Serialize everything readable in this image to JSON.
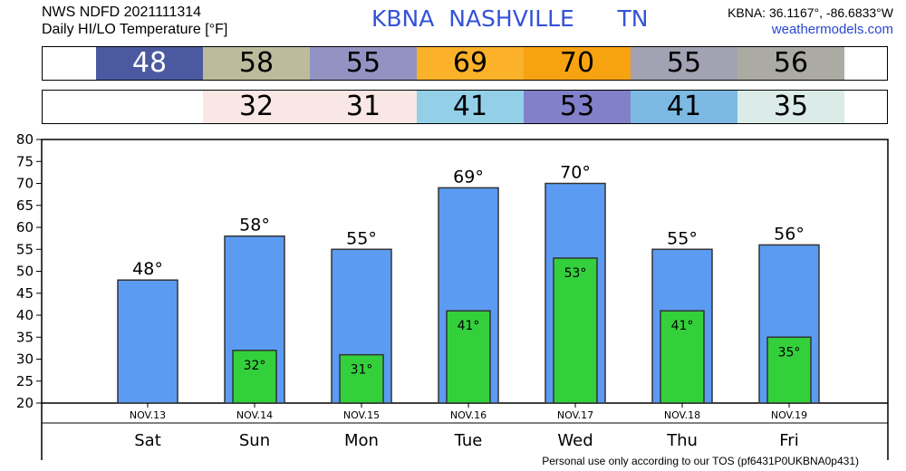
{
  "header": {
    "line1": "NWS NDFD 2021111314",
    "line2": "Daily HI/LO Temperature [°F]",
    "station_line": "KBNA  NASHVILLE      TN",
    "coords": "KBNA: 36.1167°, -86.6833°W",
    "site": "weathermodels.com"
  },
  "footer": "Personal use only according to our TOS (pf6431P0UKBNA0p431)",
  "hi_strip": [
    {
      "value": "48",
      "color": "#4b5aa0",
      "text_color": "#ffffff"
    },
    {
      "value": "58",
      "color": "#bcbc9c",
      "text_color": "#000000"
    },
    {
      "value": "55",
      "color": "#9293c3",
      "text_color": "#000000"
    },
    {
      "value": "69",
      "color": "#fbb12a",
      "text_color": "#000000"
    },
    {
      "value": "70",
      "color": "#f7a210",
      "text_color": "#000000"
    },
    {
      "value": "55",
      "color": "#a2a2b2",
      "text_color": "#000000"
    },
    {
      "value": "56",
      "color": "#ababa3",
      "text_color": "#000000"
    }
  ],
  "lo_strip": [
    {
      "value": "",
      "color": "#ffffff",
      "text_color": "#000000"
    },
    {
      "value": "32",
      "color": "#f8e7e5",
      "text_color": "#000000"
    },
    {
      "value": "31",
      "color": "#f8e7e5",
      "text_color": "#000000"
    },
    {
      "value": "41",
      "color": "#93d0e8",
      "text_color": "#000000"
    },
    {
      "value": "53",
      "color": "#8180c8",
      "text_color": "#000000"
    },
    {
      "value": "41",
      "color": "#7dbae3",
      "text_color": "#000000"
    },
    {
      "value": "35",
      "color": "#dbebe8",
      "text_color": "#000000"
    }
  ],
  "chart_data": {
    "type": "bar",
    "categories": [
      "Sat",
      "Sun",
      "Mon",
      "Tue",
      "Wed",
      "Thu",
      "Fri"
    ],
    "dates": [
      "NOV.13",
      "NOV.14",
      "NOV.15",
      "NOV.16",
      "NOV.17",
      "NOV.18",
      "NOV.19"
    ],
    "series": [
      {
        "values": [
          48,
          58,
          55,
          69,
          70,
          55,
          56
        ],
        "color": "#5b9cf2"
      },
      {
        "values": [
          null,
          32,
          31,
          41,
          53,
          41,
          35
        ],
        "color": "#34d03c"
      }
    ],
    "hi_labels": [
      "48°",
      "58°",
      "55°",
      "69°",
      "70°",
      "55°",
      "56°"
    ],
    "lo_labels": [
      "",
      "32°",
      "31°",
      "41°",
      "53°",
      "41°",
      "35°"
    ],
    "ylim": [
      20,
      80
    ],
    "yticks": [
      "20",
      "25",
      "30",
      "35",
      "40",
      "45",
      "50",
      "55",
      "60",
      "65",
      "70",
      "75",
      "80"
    ],
    "grid": false
  }
}
